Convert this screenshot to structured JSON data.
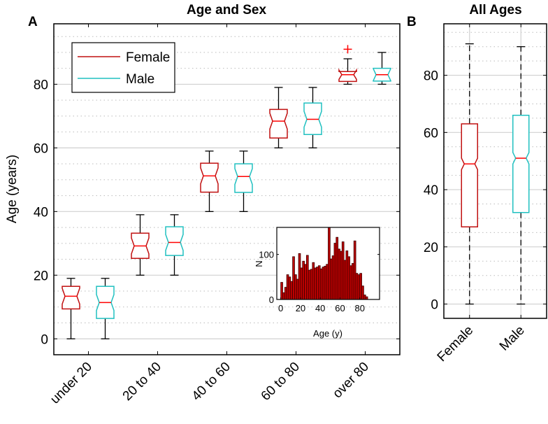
{
  "panel_labels": {
    "a": "A",
    "b": "B"
  },
  "colors": {
    "female": "#c01010",
    "male": "#20c0c0",
    "median": "#ff0000",
    "outlier": "#ff0000",
    "hist_fill": "#c00000",
    "hist_edge": "#3a0000",
    "grid": "#d0d0d0"
  },
  "chart_data": [
    {
      "type": "box",
      "title": "Age and Sex",
      "ylabel": "Age (years)",
      "xlabel": "",
      "ylim": [
        -5,
        99
      ],
      "yticks": [
        0,
        20,
        40,
        60,
        80
      ],
      "grid": "major every 20, minor dotted every 5",
      "notched": true,
      "categories": [
        "under 20",
        "20 to 40",
        "40 to 60",
        "60 to 80",
        "over 80"
      ],
      "legend": {
        "placement": "top-left",
        "entries": [
          "Female",
          "Male"
        ]
      },
      "series": [
        {
          "name": "Female",
          "boxes": [
            {
              "min": 0,
              "q1": 9.4,
              "median": 13.4,
              "q3": 16.5,
              "max": 19,
              "outliers": []
            },
            {
              "min": 20,
              "q1": 25.3,
              "median": 29.2,
              "q3": 33.2,
              "max": 39,
              "outliers": []
            },
            {
              "min": 40,
              "q1": 46.1,
              "median": 51.2,
              "q3": 55.2,
              "max": 59,
              "outliers": []
            },
            {
              "min": 60,
              "q1": 63.1,
              "median": 68.4,
              "q3": 72.1,
              "max": 79,
              "outliers": []
            },
            {
              "min": 80,
              "q1": 80.9,
              "median": 83,
              "q3": 84,
              "max": 88,
              "outliers": [
                91
              ]
            }
          ]
        },
        {
          "name": "Male",
          "boxes": [
            {
              "min": 0,
              "q1": 6.4,
              "median": 11.4,
              "q3": 16.5,
              "max": 19,
              "outliers": []
            },
            {
              "min": 20,
              "q1": 26.2,
              "median": 30.3,
              "q3": 35.2,
              "max": 39,
              "outliers": []
            },
            {
              "min": 40,
              "q1": 46,
              "median": 51,
              "q3": 55,
              "max": 59,
              "outliers": []
            },
            {
              "min": 60,
              "q1": 64.2,
              "median": 69,
              "q3": 74.1,
              "max": 79,
              "outliers": []
            },
            {
              "min": 80,
              "q1": 81,
              "median": 83,
              "q3": 85,
              "max": 90,
              "outliers": []
            }
          ]
        }
      ]
    },
    {
      "type": "bar",
      "title": "",
      "xlabel": "Age (y)",
      "ylabel": "N",
      "xlim": [
        -4,
        100
      ],
      "ylim": [
        0,
        160
      ],
      "xticks": [
        0,
        20,
        40,
        60,
        80
      ],
      "yticks": [
        0,
        100
      ],
      "bin_width": 2,
      "bin_starts": [
        0,
        2,
        4,
        6,
        8,
        10,
        12,
        14,
        16,
        18,
        20,
        22,
        24,
        26,
        28,
        30,
        32,
        34,
        36,
        38,
        40,
        42,
        44,
        46,
        48,
        50,
        52,
        54,
        56,
        58,
        60,
        62,
        64,
        66,
        68,
        70,
        72,
        74,
        76,
        78,
        80,
        82,
        84,
        86,
        88
      ],
      "values": [
        38,
        15,
        27,
        55,
        50,
        40,
        95,
        55,
        45,
        102,
        70,
        85,
        78,
        98,
        65,
        67,
        82,
        70,
        72,
        75,
        68,
        72,
        74,
        78,
        160,
        90,
        97,
        125,
        138,
        112,
        107,
        128,
        87,
        108,
        95,
        75,
        80,
        130,
        58,
        55,
        58,
        30,
        10,
        6,
        0
      ]
    },
    {
      "type": "box",
      "title": "All Ages",
      "ylim": [
        -5,
        98
      ],
      "yticks": [
        0,
        20,
        40,
        60,
        80
      ],
      "notched": true,
      "categories": [
        "Female",
        "Male"
      ],
      "boxes": [
        {
          "min": 0,
          "q1": 27,
          "median": 49,
          "q3": 63,
          "max": 91
        },
        {
          "min": 0,
          "q1": 32,
          "median": 51,
          "q3": 66,
          "max": 90
        }
      ]
    }
  ]
}
